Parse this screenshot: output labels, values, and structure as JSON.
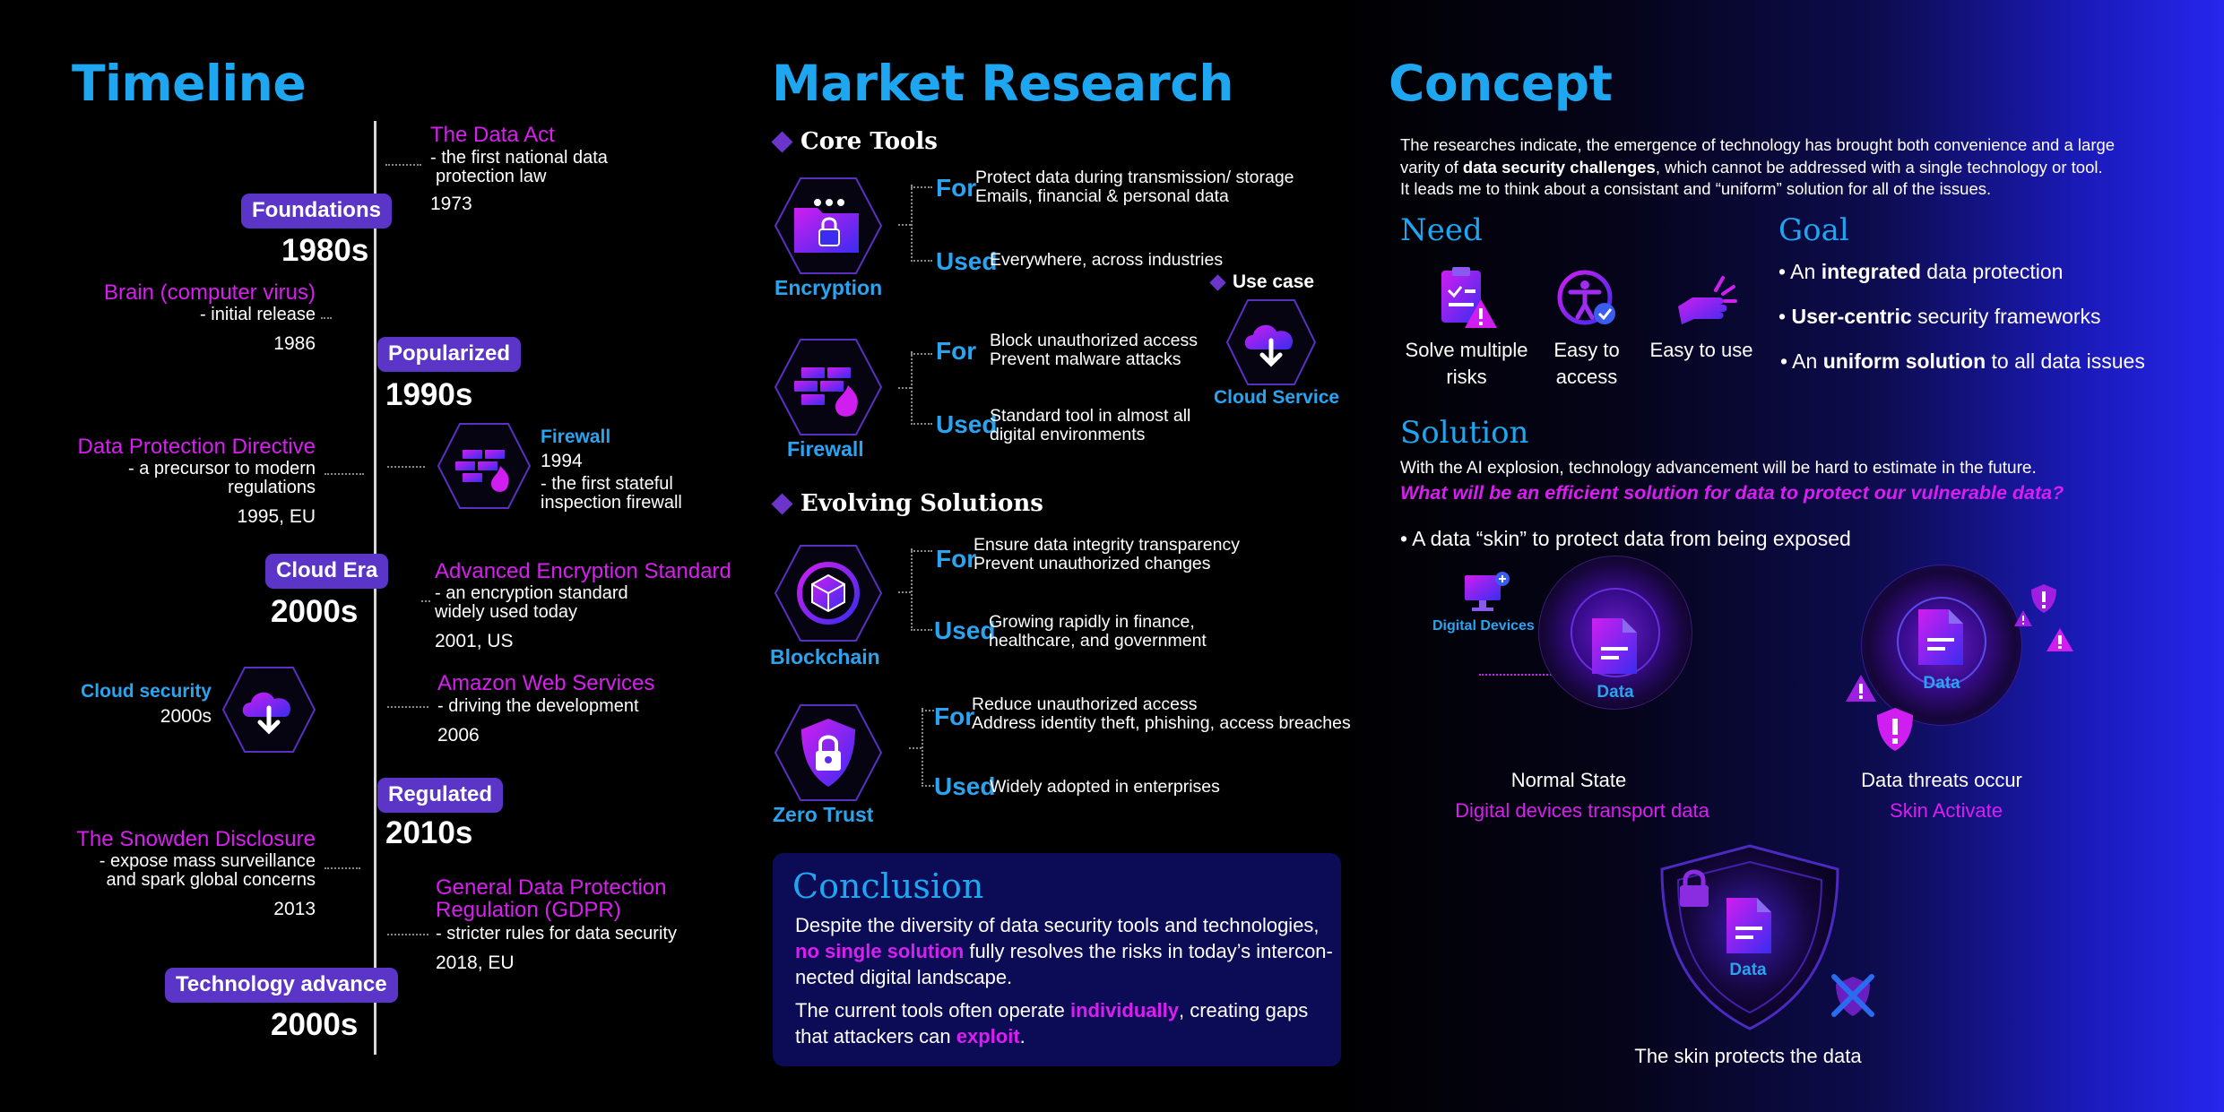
{
  "timeline": {
    "title": "Timeline",
    "tags": {
      "foundations": "Foundations",
      "popularized": "Popularized",
      "cloud_era": "Cloud Era",
      "regulated": "Regulated",
      "tech_advance": "Technology advance"
    },
    "decades": {
      "d1980": "1980s",
      "d1990": "1990s",
      "d2000a": "2000s",
      "d2010": "2010s",
      "d2000b": "2000s"
    },
    "events": {
      "data_act": {
        "title": "The Data Act",
        "desc1": "- the first national data",
        "desc2": "protection law",
        "year": "1973"
      },
      "brain": {
        "title": "Brain (computer virus)",
        "desc1": "- initial release",
        "year": "1986"
      },
      "dpd": {
        "title": "Data Protection Directive",
        "desc1": "- a precursor to modern",
        "desc2": "regulations",
        "year": "1995, EU"
      },
      "firewall": {
        "title": "Firewall",
        "year": "1994",
        "desc1": "- the first stateful",
        "desc2": "inspection firewall"
      },
      "aes": {
        "title": "Advanced Encryption Standard",
        "desc1": "- an encryption standard",
        "desc2": "widely used today",
        "year": "2001, US"
      },
      "cloud_security": {
        "title": "Cloud security",
        "year": "2000s"
      },
      "aws": {
        "title": "Amazon Web Services",
        "desc1": "- driving the development",
        "year": "2006"
      },
      "snowden": {
        "title": "The Snowden Disclosure",
        "desc1": "- expose mass surveillance",
        "desc2": "and spark global concerns",
        "year": "2013"
      },
      "gdpr": {
        "title1": "General Data Protection",
        "title2": "Regulation (GDPR)",
        "desc1": "- stricter rules for data security",
        "year": "2018, EU"
      }
    }
  },
  "market": {
    "title": "Market Research",
    "core_tools": "Core Tools",
    "evolving": "Evolving Solutions",
    "for": "For",
    "used": "Used",
    "use_case": "Use case",
    "cloud_service": "Cloud Service",
    "tools": {
      "encryption": {
        "name": "Encryption",
        "for1": "Protect data during transmission/ storage",
        "for2": "Emails, financial & personal data",
        "used1": "Everywhere, across industries"
      },
      "firewall": {
        "name": "Firewall",
        "for1": "Block unauthorized access",
        "for2": "Prevent malware attacks",
        "used1": "Standard tool in almost all",
        "used2": "digital environments"
      },
      "blockchain": {
        "name": "Blockchain",
        "for1": "Ensure data integrity transparency",
        "for2": "Prevent unauthorized changes",
        "used1": "Growing rapidly in finance,",
        "used2": "healthcare, and government"
      },
      "zero_trust": {
        "name": "Zero Trust",
        "for1": "Reduce unauthorized access",
        "for2": "Address identity theft, phishing, access breaches",
        "used1": "Widely adopted in enterprises"
      }
    },
    "conclusion": {
      "title": "Conclusion",
      "p1_a": "Despite the diversity of data security tools and technologies, ",
      "p1_b": "no single solution",
      "p1_c": " fully resolves the risks in today’s intercon-nected digital landscape.",
      "p2_a": "The current tools often operate ",
      "p2_b": "individually",
      "p2_c": ", creating gaps that attackers can ",
      "p2_d": "exploit",
      "p2_e": "."
    }
  },
  "concept": {
    "title": "Concept",
    "intro_1": "The researches indicate, the emergence of technology has brought both convenience and a large",
    "intro_2a": "varity of ",
    "intro_2b": "data security challenges",
    "intro_2c": ", which cannot be addressed with a single technology or tool.",
    "intro_3": "It leads me to think about a consistant and “uniform” solution for all of the issues.",
    "need": {
      "title": "Need",
      "items": [
        {
          "label1": "Solve multiple",
          "label2": "risks"
        },
        {
          "label1": "Easy to",
          "label2": "access"
        },
        {
          "label1": "Easy to use",
          "label2": ""
        }
      ]
    },
    "goal": {
      "title": "Goal",
      "g1a": "• An ",
      "g1b": "integrated",
      "g1c": " data protection",
      "g2a": "• ",
      "g2b": "User-centric",
      "g2c": " security frameworks",
      "g3a": "• An ",
      "g3b": "uniform solution",
      "g3c": " to all data issues"
    },
    "solution": {
      "title": "Solution",
      "line1": "With the AI explosion, technology advancement will be hard to estimate in the future.",
      "question": "What will be an efficient solution for data to protect our vulnerable data?",
      "bullet": "• A data “skin” to protect data from being exposed"
    },
    "diagram": {
      "digital_devices": "Digital Devices",
      "data": "Data",
      "normal_state": "Normal State",
      "normal_sub": "Digital devices transport data",
      "threat_state": "Data threats occur",
      "threat_sub": "Skin Activate",
      "protect": "The skin protects the data"
    }
  },
  "colors": {
    "accent_blue": "#1ea7f0",
    "magenta": "#d81ef0",
    "purple": "#5a35c8",
    "panel": "#0c0b56"
  }
}
